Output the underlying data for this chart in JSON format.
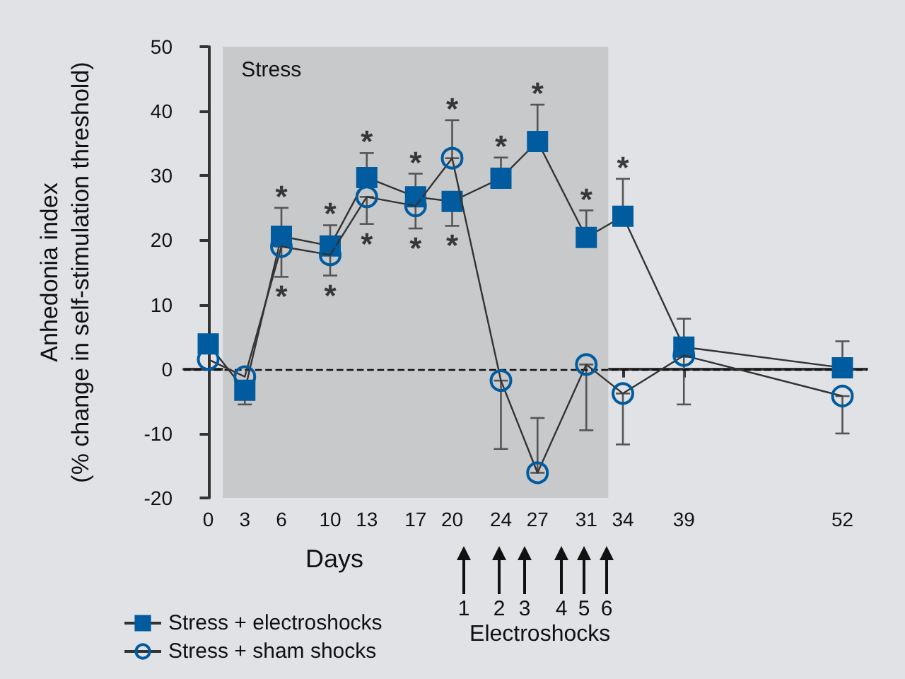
{
  "chart_data": {
    "type": "line",
    "xlabel": "Days",
    "ylabel": "Anhedonia index\n(% change in self-stimulation threshold)",
    "x": [
      0,
      3,
      6,
      10,
      13,
      17,
      20,
      24,
      27,
      31,
      34,
      39,
      52
    ],
    "xlim": [
      -2,
      54
    ],
    "xticks": [
      0,
      3,
      6,
      10,
      13,
      17,
      20,
      24,
      27,
      31,
      34,
      39,
      52
    ],
    "ylim": [
      -20,
      50
    ],
    "yticks": [
      -20,
      -10,
      0,
      10,
      20,
      30,
      40,
      50
    ],
    "legend": "bottom left",
    "line_style": "solid",
    "series": [
      {
        "name": "Stress + electroshocks",
        "color": "#005b9f",
        "marker": "square",
        "values": [
          3.9,
          -3.3,
          20.6,
          19.1,
          29.7,
          26.7,
          26,
          29.6,
          35.3,
          20.4,
          23.7,
          3.4,
          0.2
        ],
        "errors": [
          null,
          [
            -5.5,
            -3.3
          ],
          [
            20.6,
            25
          ],
          [
            19.1,
            22.3
          ],
          [
            29.7,
            33.5
          ],
          [
            26.7,
            30.3
          ],
          [
            22.2,
            26
          ],
          [
            29.6,
            32.8
          ],
          [
            35.3,
            41
          ],
          [
            20.4,
            24.6
          ],
          [
            23.7,
            29.5
          ],
          [
            3.4,
            7.8
          ],
          [
            0.2,
            4.3
          ]
        ]
      },
      {
        "name": "Stress + sham shocks",
        "color": "#005b9f",
        "marker": "circle",
        "values": [
          1.5,
          -1.2,
          19,
          17.7,
          26.7,
          25.3,
          32.7,
          -1.8,
          -16.1,
          0.7,
          -3.8,
          2.1,
          -4.2
        ],
        "errors": [
          null,
          null,
          [
            14.3,
            19
          ],
          [
            14.5,
            17.7
          ],
          [
            22.5,
            26.7
          ],
          [
            21.8,
            25.3
          ],
          [
            32.7,
            38.6
          ],
          [
            -12.4,
            -1.8
          ],
          [
            -16.1,
            -7.6
          ],
          [
            -9.5,
            0.7
          ],
          [
            -11.7,
            -3.8
          ],
          [
            -5.5,
            2.1
          ],
          [
            -10,
            -4.2
          ]
        ]
      }
    ],
    "ref_lines": [
      {
        "axis": "y",
        "value": 0,
        "color": "#111111",
        "line_style": "dashed"
      }
    ],
    "bands": [
      {
        "axis": "x",
        "from": 1.2,
        "to": 32.8,
        "label": "Stress",
        "color": "#c8c9cb"
      }
    ],
    "annotations": [
      {
        "text": "*",
        "x": 6,
        "y": 20.6
      },
      {
        "text": "*",
        "x": 6,
        "y": 19
      },
      {
        "text": "*",
        "x": 10,
        "y": 19.1
      },
      {
        "text": "*",
        "x": 10,
        "y": 17.7
      },
      {
        "text": "*",
        "x": 13,
        "y": 29.7
      },
      {
        "text": "*",
        "x": 13,
        "y": 26.7
      },
      {
        "text": "*",
        "x": 17,
        "y": 26.7
      },
      {
        "text": "*",
        "x": 17,
        "y": 25.3
      },
      {
        "text": "*",
        "x": 20,
        "y": 32.7
      },
      {
        "text": "*",
        "x": 20,
        "y": 26
      },
      {
        "text": "*",
        "x": 24,
        "y": 29.6
      },
      {
        "text": "*",
        "x": 27,
        "y": 35.3
      },
      {
        "text": "*",
        "x": 31,
        "y": 20.4
      },
      {
        "text": "*",
        "x": 34,
        "y": 23.7
      },
      "1",
      "2",
      "3",
      "4",
      "5",
      "6",
      "Electroshocks"
    ]
  }
}
